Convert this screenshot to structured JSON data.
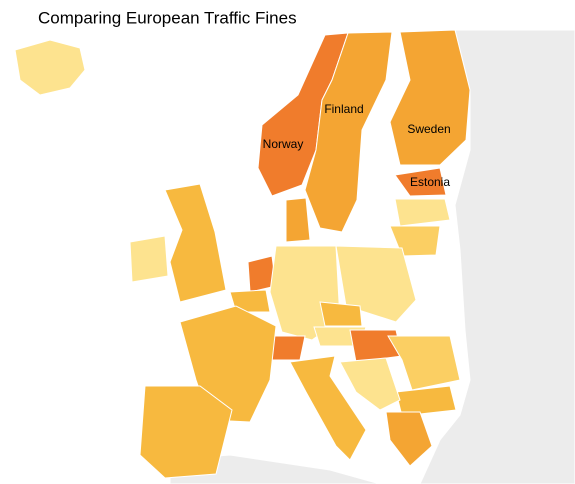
{
  "title": "Comparing European Traffic Fines",
  "labels": [
    "Norway",
    "Finland",
    "Sweden",
    "Estonia"
  ]
}
